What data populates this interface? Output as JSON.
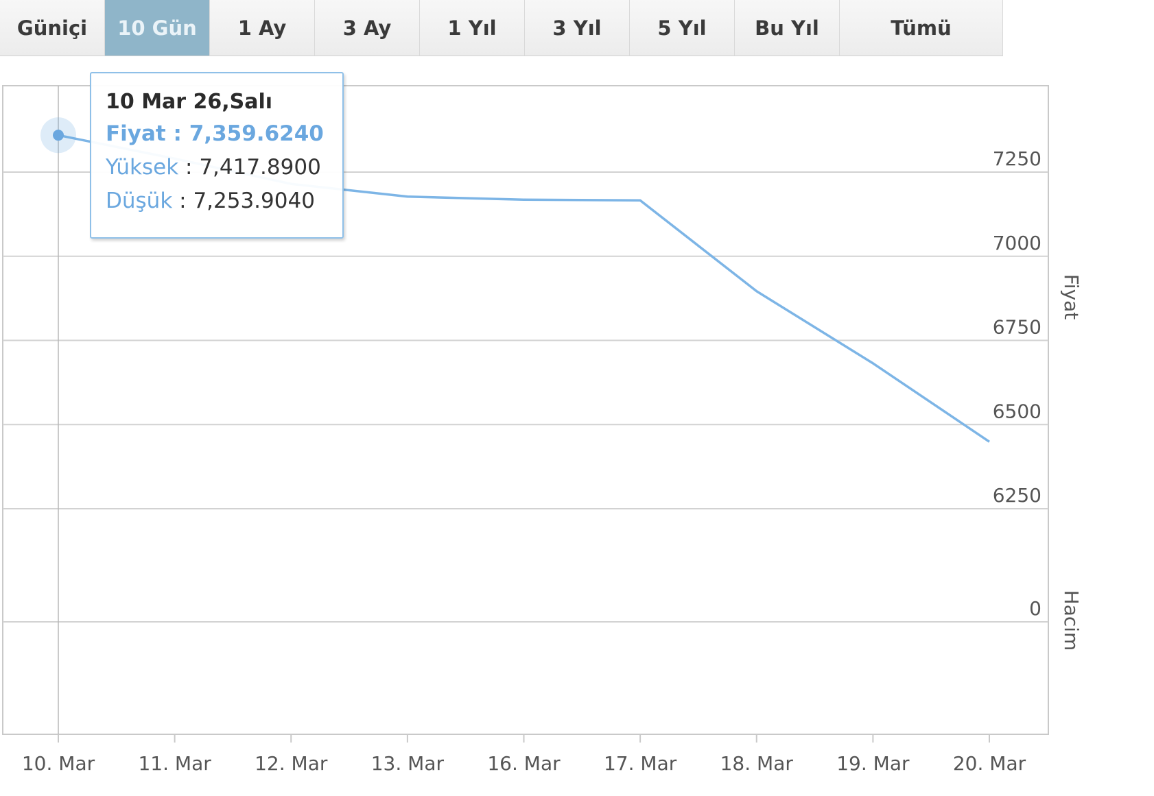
{
  "range_tabs": [
    {
      "label": "Güniçi",
      "active": false
    },
    {
      "label": "10 Gün",
      "active": true
    },
    {
      "label": "1 Ay",
      "active": false
    },
    {
      "label": "3 Ay",
      "active": false
    },
    {
      "label": "1 Yıl",
      "active": false
    },
    {
      "label": "3 Yıl",
      "active": false
    },
    {
      "label": "5 Yıl",
      "active": false
    },
    {
      "label": "Bu Yıl",
      "active": false
    },
    {
      "label": "Tümü",
      "active": false
    }
  ],
  "tooltip": {
    "title": "10 Mar 26,Salı",
    "price_label": "Fiyat",
    "price_value": "7,359.6240",
    "high_label": "Yüksek",
    "high_value": "7,417.8900",
    "low_label": "Düşük",
    "low_value": "7,253.9040",
    "separator": " : "
  },
  "colors": {
    "line": "#7db5e6",
    "marker": "#6aa7df",
    "grid": "#d2d2d2",
    "tab_active": "#8fb5c9"
  },
  "chart_data": {
    "type": "line",
    "categories": [
      "10. Mar",
      "11. Mar",
      "12. Mar",
      "13. Mar",
      "16. Mar",
      "17. Mar",
      "18. Mar",
      "19. Mar",
      "20. Mar"
    ],
    "series": [
      {
        "values": [
          7359.624,
          7290,
          7215,
          7177,
          7168,
          7166,
          6896,
          6682,
          6449
        ]
      }
    ],
    "ylabel_price": "Fiyat",
    "ylabel_volume": "Hacim",
    "price_ticks": [
      7250,
      7000,
      6750,
      6500,
      6250
    ],
    "volume_ticks": [
      0
    ],
    "price_axis": {
      "tick_top": 7250,
      "tick_bottom": 6250
    },
    "highlighted_index": 0,
    "grid": true
  }
}
